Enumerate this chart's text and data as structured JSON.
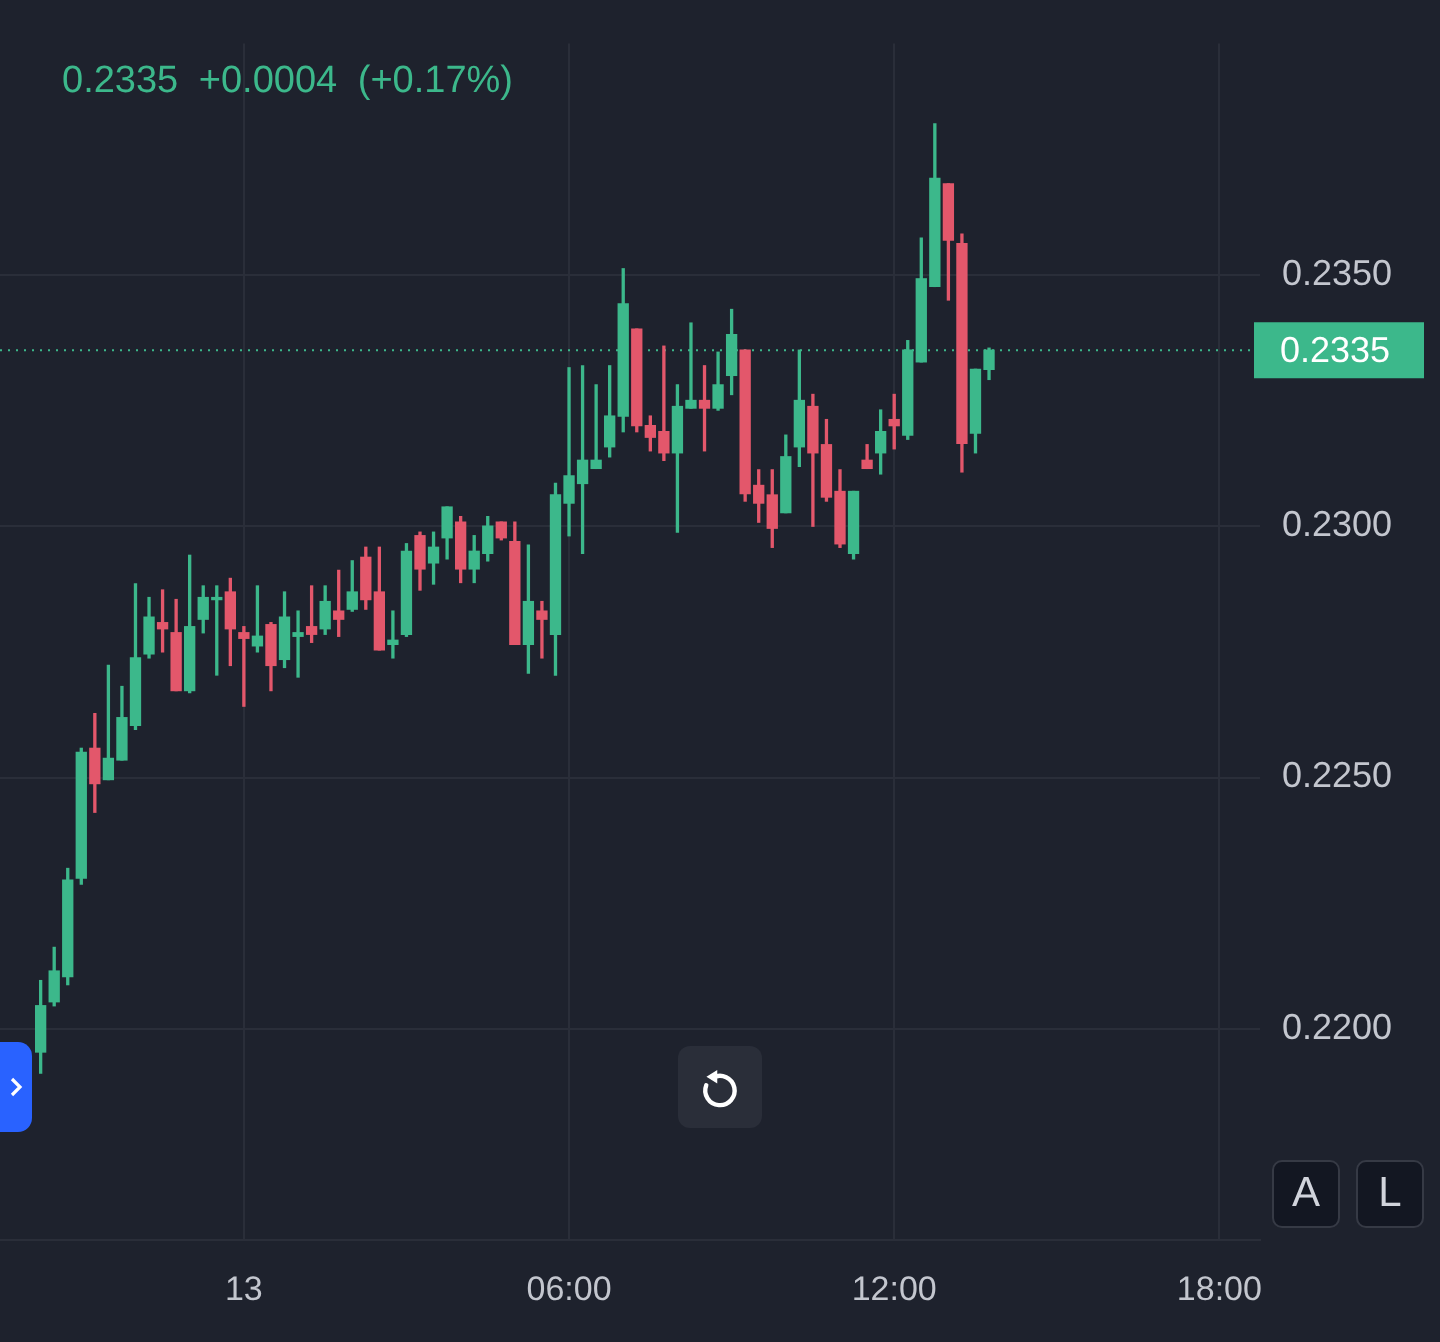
{
  "chart_data": {
    "type": "candlestick",
    "subtitle": "0.2335 +0.0004 (+0.17%)",
    "categories": [
      null,
      null,
      null,
      null,
      null,
      null,
      null,
      null,
      null,
      null,
      null,
      null,
      null,
      null,
      null,
      null,
      null,
      null,
      "13",
      null,
      null,
      null,
      null,
      null,
      null,
      null,
      null,
      null,
      null,
      null,
      null,
      null,
      null,
      null,
      null,
      null,
      null,
      null,
      null,
      null,
      null,
      null,
      "06:00",
      null,
      null,
      null,
      null,
      null,
      null,
      null,
      null,
      null,
      null,
      null,
      null,
      null,
      null,
      null,
      null,
      null,
      null,
      null,
      null,
      null,
      null,
      null,
      "12:00",
      null,
      null,
      null,
      null,
      null,
      null,
      null,
      null,
      null,
      null,
      null,
      null,
      null,
      null,
      null,
      null,
      null,
      null,
      null,
      null,
      null,
      null,
      null,
      "18:00",
      null,
      null,
      null
    ],
    "ohlc": [
      null,
      null,
      null,
      [
        0.21954,
        0.22096,
        0.21912,
        0.22046
      ],
      [
        0.22054,
        0.22162,
        0.22046,
        0.22115
      ],
      [
        0.22104,
        0.22319,
        0.22088,
        0.22296
      ],
      [
        0.223,
        0.22558,
        0.22288,
        0.2255
      ],
      [
        0.22558,
        0.22627,
        0.22431,
        0.22488
      ],
      [
        0.22496,
        0.22723,
        0.22496,
        0.22538
      ],
      [
        0.22535,
        0.22681,
        0.22535,
        0.22619
      ],
      [
        0.22604,
        0.22885,
        0.22596,
        0.22738
      ],
      [
        0.22746,
        0.22858,
        0.22738,
        0.22819
      ],
      [
        0.22808,
        0.22873,
        0.2275,
        0.22796
      ],
      [
        0.22788,
        0.22854,
        0.22673,
        0.22673
      ],
      [
        0.22673,
        0.22942,
        0.22669,
        0.228
      ],
      [
        0.22815,
        0.22881,
        0.22788,
        0.22858
      ],
      [
        0.22854,
        0.22881,
        0.22704,
        0.22858
      ],
      [
        0.22869,
        0.22896,
        0.22723,
        0.22796
      ],
      [
        0.22788,
        0.228,
        0.22642,
        0.22777
      ],
      [
        0.22762,
        0.22881,
        0.2275,
        0.22781
      ],
      [
        0.22804,
        0.22808,
        0.22673,
        0.22723
      ],
      [
        0.22735,
        0.22869,
        0.22719,
        0.22819
      ],
      [
        0.22781,
        0.22831,
        0.227,
        0.22788
      ],
      [
        0.228,
        0.22881,
        0.22769,
        0.22785
      ],
      [
        0.22796,
        0.22881,
        0.22785,
        0.2285
      ],
      [
        0.22831,
        0.22912,
        0.22781,
        0.22815
      ],
      [
        0.22835,
        0.22931,
        0.22831,
        0.22869
      ],
      [
        0.22938,
        0.22958,
        0.22835,
        0.22854
      ],
      [
        0.22869,
        0.22958,
        0.22754,
        0.22754
      ],
      [
        0.22765,
        0.22831,
        0.22738,
        0.22773
      ],
      [
        0.22785,
        0.22965,
        0.22781,
        0.2295
      ],
      [
        0.22981,
        0.22988,
        0.22873,
        0.22915
      ],
      [
        0.22927,
        0.22988,
        0.22885,
        0.22958
      ],
      [
        0.22977,
        0.23038,
        0.22935,
        0.23038
      ],
      [
        0.23008,
        0.23019,
        0.22888,
        0.22915
      ],
      [
        0.22915,
        0.22981,
        0.22888,
        0.2295
      ],
      [
        0.22946,
        0.23019,
        0.22931,
        0.23
      ],
      [
        0.23008,
        0.23008,
        0.22973,
        0.22977
      ],
      [
        0.22969,
        0.23008,
        0.22765,
        0.22765
      ],
      [
        0.22765,
        0.22962,
        0.22708,
        0.2285
      ],
      [
        0.22831,
        0.2285,
        0.22738,
        0.22815
      ],
      [
        0.22785,
        0.23085,
        0.22704,
        0.23062
      ],
      [
        0.23046,
        0.23315,
        0.22981,
        0.231
      ],
      [
        0.23085,
        0.23319,
        0.22946,
        0.23131
      ],
      [
        0.23115,
        0.23281,
        0.23115,
        0.23131
      ],
      [
        0.23158,
        0.23319,
        0.23138,
        0.23219
      ],
      [
        0.23219,
        0.23512,
        0.23188,
        0.23442
      ],
      [
        0.23392,
        0.23392,
        0.23188,
        0.232
      ],
      [
        0.232,
        0.23219,
        0.2315,
        0.23177
      ],
      [
        0.23188,
        0.23358,
        0.23131,
        0.23146
      ],
      [
        0.23146,
        0.23281,
        0.22988,
        0.23238
      ],
      [
        0.23235,
        0.23404,
        0.23235,
        0.2325
      ],
      [
        0.2325,
        0.23319,
        0.2315,
        0.23235
      ],
      [
        0.23235,
        0.23346,
        0.23231,
        0.23281
      ],
      [
        0.233,
        0.23431,
        0.23262,
        0.23381
      ],
      [
        0.2335,
        0.2335,
        0.2305,
        0.23065
      ],
      [
        0.23081,
        0.23112,
        0.23008,
        0.23046
      ],
      [
        0.23062,
        0.23112,
        0.22958,
        0.22996
      ],
      [
        0.23027,
        0.23181,
        0.23027,
        0.23138
      ],
      [
        0.23158,
        0.2335,
        0.23119,
        0.2325
      ],
      [
        0.23238,
        0.23262,
        0.23,
        0.23146
      ],
      [
        0.23162,
        0.23212,
        0.2305,
        0.23058
      ],
      [
        0.23069,
        0.23112,
        0.22958,
        0.22965
      ],
      [
        0.22946,
        0.23069,
        0.22935,
        0.23069
      ],
      [
        0.23131,
        0.23162,
        0.23115,
        0.23115
      ],
      [
        0.23146,
        0.23231,
        0.23104,
        0.23188
      ],
      [
        0.23212,
        0.23262,
        0.23154,
        0.232
      ],
      [
        0.23181,
        0.23369,
        0.23173,
        0.2335
      ],
      [
        0.23327,
        0.23573,
        0.23327,
        0.23492
      ],
      [
        0.23477,
        0.238,
        0.23477,
        0.23692
      ],
      [
        0.23681,
        0.23681,
        0.2345,
        0.23569
      ],
      [
        0.23562,
        0.23581,
        0.23108,
        0.23165
      ],
      [
        0.23185,
        0.23312,
        0.23146,
        0.23312
      ],
      [
        0.23312,
        0.23354,
        0.23292,
        0.2335
      ],
      null,
      null,
      null,
      null,
      null,
      null,
      null,
      null,
      null,
      null,
      null,
      null,
      null,
      null,
      null,
      null,
      null,
      null,
      null,
      null
    ],
    "colors": [
      null,
      null,
      null,
      "#3cb88b",
      "#3cb88b",
      "#3cb88b",
      "#3cb88b",
      "#e3576b",
      "#3cb88b",
      "#3cb88b",
      "#3cb88b",
      "#3cb88b",
      "#e3576b",
      "#e3576b",
      "#3cb88b",
      "#3cb88b",
      "#3cb88b",
      "#e3576b",
      "#e3576b",
      "#3cb88b",
      "#e3576b",
      "#3cb88b",
      "#3cb88b",
      "#e3576b",
      "#3cb88b",
      "#e3576b",
      "#3cb88b",
      "#e3576b",
      "#e3576b",
      "#3cb88b",
      "#3cb88b",
      "#e3576b",
      "#3cb88b",
      "#3cb88b",
      "#e3576b",
      "#3cb88b",
      "#3cb88b",
      "#e3576b",
      "#e3576b",
      "#3cb88b",
      "#e3576b",
      "#3cb88b",
      "#3cb88b",
      "#3cb88b",
      "#3cb88b",
      "#3cb88b",
      "#3cb88b",
      "#e3576b",
      "#e3576b",
      "#e3576b",
      "#3cb88b",
      "#3cb88b",
      "#e3576b",
      "#3cb88b",
      "#3cb88b",
      "#e3576b",
      "#e3576b",
      "#e3576b",
      "#3cb88b",
      "#3cb88b",
      "#e3576b",
      "#e3576b",
      "#e3576b",
      "#3cb88b",
      "#e3576b",
      "#3cb88b",
      "#e3576b",
      "#3cb88b",
      "#3cb88b",
      "#3cb88b",
      "#e3576b",
      "#e3576b",
      "#3cb88b",
      "#3cb88b",
      null,
      null,
      null,
      null,
      null,
      null,
      null,
      null,
      null,
      null,
      null,
      null,
      null,
      null,
      null,
      null,
      null,
      null,
      null,
      null
    ],
    "ylim": [
      0.2158,
      0.2396
    ],
    "yticks": [
      {
        "value": 0.22,
        "label": "0.2200"
      },
      {
        "value": 0.225,
        "label": "0.2250"
      },
      {
        "value": 0.23,
        "label": "0.2300"
      },
      {
        "value": 0.235,
        "label": "0.2350"
      }
    ],
    "grid": true,
    "ref_lines": [
      {
        "axis": "y",
        "value": 0.2335,
        "label": "0.2335",
        "color": "#3cb88b",
        "line_style": "dotted"
      }
    ],
    "annotations": [
      "A",
      "L"
    ]
  }
}
